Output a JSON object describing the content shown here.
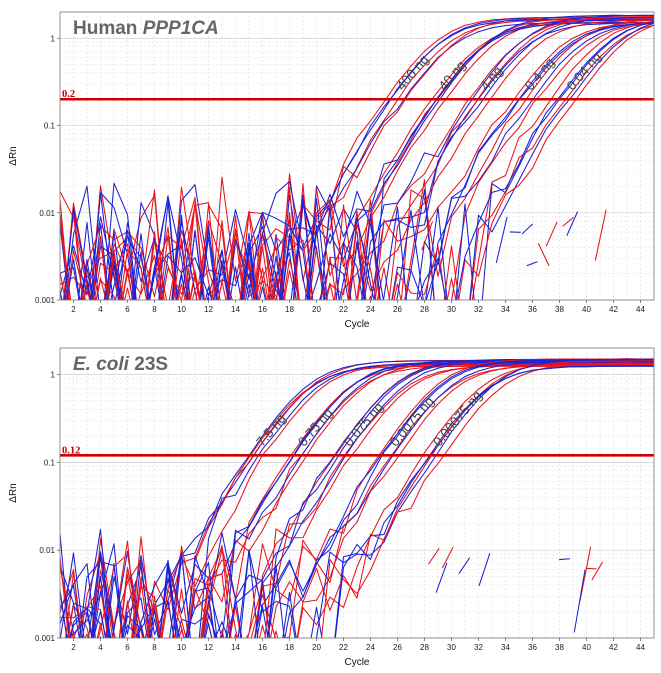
{
  "chart_data": [
    {
      "type": "line",
      "title": "Human ",
      "title_italic": "PPP1CA",
      "title_tail": "",
      "xlabel": "Cycle",
      "ylabel": "ΔRn",
      "log_y": true,
      "grid": true,
      "xlim": [
        1,
        45
      ],
      "ylim": [
        0.001,
        2
      ],
      "xticks": [
        2,
        4,
        6,
        8,
        10,
        12,
        14,
        16,
        18,
        20,
        22,
        24,
        26,
        28,
        30,
        32,
        34,
        36,
        38,
        40,
        42,
        44
      ],
      "yticks": [
        {
          "value": 1,
          "label": "1"
        },
        {
          "value": 0.1,
          "label": "0.1"
        },
        {
          "value": 0.01,
          "label": "0.01"
        },
        {
          "value": 0.001,
          "label": "0.001"
        }
      ],
      "threshold": {
        "value": 0.2,
        "label": "0.2",
        "color": "#d40000"
      },
      "colors": {
        "red": "#e8141c",
        "blue": "#1a23d6"
      },
      "plateau": 1.7,
      "noise_level": 0.006,
      "groups": [
        {
          "label": "400 ng",
          "ct": 25.8,
          "ct_spread": [
            -0.6,
            -0.2,
            0.2,
            0.5,
            0.9,
            -0.3
          ]
        },
        {
          "label": "40 ng",
          "ct": 28.9,
          "ct_spread": [
            -0.5,
            -0.1,
            0.2,
            0.4,
            0.7,
            -0.2
          ]
        },
        {
          "label": "4 ng",
          "ct": 32.0,
          "ct_spread": [
            -0.5,
            -0.2,
            0.1,
            0.4,
            0.8,
            -0.3
          ]
        },
        {
          "label": "0.4 ng",
          "ct": 35.3,
          "ct_spread": [
            -0.8,
            -0.3,
            0.2,
            0.6,
            1.0,
            -0.5
          ]
        },
        {
          "label": "0.04 ng",
          "ct": 38.4,
          "ct_spread": [
            -1.0,
            -0.4,
            0.1,
            0.6,
            1.0,
            -0.2
          ]
        }
      ]
    },
    {
      "type": "line",
      "title": "",
      "title_italic": "E. coli",
      "title_tail": " 23S",
      "xlabel": "Cycle",
      "ylabel": "ΔRn",
      "log_y": true,
      "grid": true,
      "xlim": [
        1,
        45
      ],
      "ylim": [
        0.001,
        2
      ],
      "xticks": [
        2,
        4,
        6,
        8,
        10,
        12,
        14,
        16,
        18,
        20,
        22,
        24,
        26,
        28,
        30,
        32,
        34,
        36,
        38,
        40,
        42,
        44
      ],
      "yticks": [
        {
          "value": 1,
          "label": "1"
        },
        {
          "value": 0.1,
          "label": "0.1"
        },
        {
          "value": 0.01,
          "label": "0.01"
        },
        {
          "value": 0.001,
          "label": "0.001"
        }
      ],
      "threshold": {
        "value": 0.12,
        "label": "0.12",
        "color": "#d40000"
      },
      "colors": {
        "red": "#e8141c",
        "blue": "#1a23d6"
      },
      "plateau": 1.4,
      "noise_level": 0.004,
      "groups": [
        {
          "label": "7.5 ng",
          "ct": 15.4,
          "ct_spread": [
            -0.5,
            -0.2,
            0.1,
            0.4,
            0.7,
            -0.3
          ]
        },
        {
          "label": "0.75 ng",
          "ct": 18.5,
          "ct_spread": [
            -0.5,
            -0.1,
            0.2,
            0.5,
            0.8,
            -0.2
          ]
        },
        {
          "label": "0.075 ng",
          "ct": 21.9,
          "ct_spread": [
            -0.4,
            -0.1,
            0.2,
            0.4,
            0.6,
            -0.3
          ]
        },
        {
          "label": "0.0075 ng",
          "ct": 25.3,
          "ct_spread": [
            -0.5,
            -0.2,
            0.1,
            0.4,
            0.7,
            -0.3
          ]
        },
        {
          "label": "0.00075 ng",
          "ct": 28.5,
          "ct_spread": [
            -0.6,
            -0.2,
            0.1,
            0.5,
            0.9,
            -0.3
          ]
        }
      ]
    }
  ]
}
